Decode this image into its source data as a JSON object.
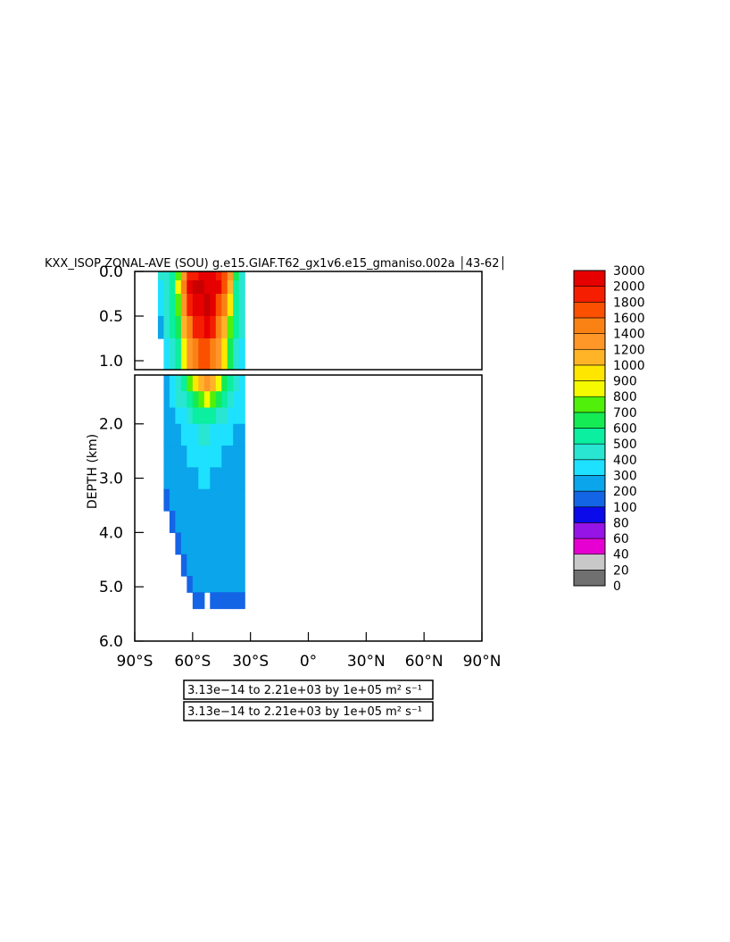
{
  "chart_data": {
    "type": "heatmap",
    "title": "KXX_ISOP ZONAL-AVE (SOU) g.e15.GIAF.T62_gx1v6.e15_gmaniso.002a │43-62│",
    "xlabel": "",
    "ylabel": "DEPTH (km)",
    "x_range_deg": [
      -90,
      90
    ],
    "x_tick_values": [
      -90,
      -60,
      -30,
      0,
      30,
      60,
      90
    ],
    "x_tick_labels": [
      "90°S",
      "60°S",
      "30°S",
      "0°",
      "30°N",
      "60°N",
      "90°N"
    ],
    "upper_panel": {
      "depth_range_km": [
        0.0,
        1.1
      ],
      "tick_values": [
        0.0,
        0.5,
        1.0
      ],
      "tick_labels": [
        "0.0",
        "0.5",
        "1.0"
      ]
    },
    "lower_panel": {
      "depth_range_km": [
        1.1,
        6.0
      ],
      "tick_values": [
        2.0,
        3.0,
        4.0,
        5.0,
        6.0
      ],
      "tick_labels": [
        "2.0",
        "3.0",
        "4.0",
        "5.0",
        "6.0"
      ]
    },
    "colorbar": {
      "levels": [
        0,
        20,
        40,
        60,
        80,
        100,
        200,
        300,
        400,
        500,
        600,
        700,
        800,
        900,
        1000,
        1200,
        1400,
        1600,
        1800,
        2000,
        3000
      ],
      "labels": [
        "0",
        "20",
        "40",
        "60",
        "80",
        "100",
        "200",
        "300",
        "400",
        "500",
        "600",
        "700",
        "800",
        "900",
        "1000",
        "1200",
        "1400",
        "1600",
        "1800",
        "2000",
        "3000"
      ],
      "colors": [
        "#707070",
        "#c8c8c8",
        "#e600d2",
        "#9614e6",
        "#0a0aeb",
        "#1464e6",
        "#0aa5eb",
        "#1ee1ff",
        "#28e6d2",
        "#0aefa0",
        "#14eb55",
        "#50f00a",
        "#f5fa00",
        "#ffe600",
        "#ffb428",
        "#ff9628",
        "#fa8214",
        "#fa5000",
        "#f51e00",
        "#e60000",
        "#c80000"
      ]
    },
    "field": {
      "lat_edges": [
        -78,
        -75,
        -72,
        -69,
        -66,
        -63,
        -60,
        -57,
        -54,
        -51,
        -48,
        -45,
        -42,
        -39,
        -36,
        -33
      ],
      "depth_edges_km": [
        0.0,
        0.1,
        0.25,
        0.5,
        0.75,
        1.1,
        1.4,
        1.7,
        2.0,
        2.4,
        2.8,
        3.2,
        3.6,
        4.0,
        4.4,
        4.8,
        5.1,
        5.4
      ],
      "rows": [
        [
          400,
          400,
          500,
          700,
          1200,
          1800,
          1800,
          2000,
          2000,
          2000,
          1800,
          1600,
          1200,
          600,
          400
        ],
        [
          300,
          400,
          500,
          800,
          1400,
          2000,
          3000,
          3000,
          2000,
          2000,
          2000,
          1600,
          1000,
          500,
          400
        ],
        [
          300,
          400,
          500,
          700,
          1200,
          1800,
          2000,
          2000,
          3000,
          2000,
          1600,
          1400,
          900,
          500,
          400
        ],
        [
          200,
          400,
          500,
          600,
          1000,
          1400,
          1800,
          1800,
          2000,
          1800,
          1400,
          1000,
          700,
          500,
          400
        ],
        [
          null,
          300,
          400,
          500,
          800,
          1200,
          1400,
          1600,
          1600,
          1400,
          1200,
          900,
          600,
          400,
          300
        ],
        [
          null,
          200,
          300,
          400,
          500,
          700,
          900,
          1000,
          1200,
          1000,
          800,
          600,
          500,
          400,
          300
        ],
        [
          null,
          200,
          300,
          400,
          400,
          500,
          600,
          700,
          800,
          700,
          600,
          500,
          400,
          300,
          300
        ],
        [
          null,
          200,
          200,
          300,
          300,
          400,
          500,
          500,
          500,
          500,
          400,
          400,
          300,
          300,
          300
        ],
        [
          null,
          200,
          200,
          200,
          300,
          300,
          300,
          400,
          400,
          300,
          300,
          300,
          300,
          200,
          200
        ],
        [
          null,
          200,
          200,
          200,
          200,
          300,
          300,
          300,
          300,
          300,
          300,
          200,
          200,
          200,
          200
        ],
        [
          null,
          200,
          200,
          200,
          200,
          200,
          200,
          300,
          300,
          200,
          200,
          200,
          200,
          200,
          200
        ],
        [
          null,
          100,
          200,
          200,
          200,
          200,
          200,
          200,
          200,
          200,
          200,
          200,
          200,
          200,
          200
        ],
        [
          null,
          null,
          100,
          200,
          200,
          200,
          200,
          200,
          200,
          200,
          200,
          200,
          200,
          200,
          200
        ],
        [
          null,
          null,
          null,
          100,
          200,
          200,
          200,
          200,
          200,
          200,
          200,
          200,
          200,
          200,
          200
        ],
        [
          null,
          null,
          null,
          null,
          100,
          200,
          200,
          200,
          200,
          200,
          200,
          200,
          200,
          200,
          200
        ],
        [
          null,
          null,
          null,
          null,
          null,
          100,
          200,
          200,
          200,
          200,
          200,
          200,
          200,
          200,
          200
        ],
        [
          null,
          null,
          null,
          null,
          null,
          null,
          100,
          100,
          null,
          100,
          100,
          100,
          100,
          100,
          100
        ]
      ]
    },
    "range_labels": [
      "3.13e−14 to 2.21e+03 by 1e+05 m² s⁻¹",
      "3.13e−14 to 2.21e+03 by 1e+05 m² s⁻¹"
    ]
  }
}
